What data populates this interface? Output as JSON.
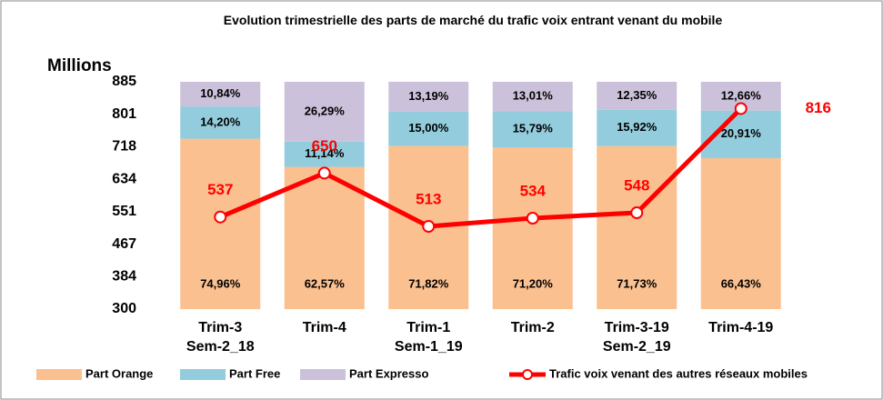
{
  "chart_data": {
    "type": "stacked_bar_line",
    "title": "Evolution trimestrielle  des parts de marché du trafic voix  entrant venant du mobile",
    "y_label": "Millions",
    "categories": [
      "Trim-3\nSem-2_18",
      "Trim-4",
      "Trim-1\nSem-1_19",
      "Trim-2",
      "Trim-3-19\nSem-2_19",
      "Trim-4-19"
    ],
    "ylim": [
      300,
      885
    ],
    "yticks": [
      300,
      384,
      467,
      551,
      634,
      718,
      801,
      885
    ],
    "y2lim": [
      0,
      100
    ],
    "grid": false,
    "legend": "bottom",
    "series": [
      {
        "name": "Part Orange",
        "color": "#fac090",
        "axis": "y2",
        "values": [
          74.96,
          62.57,
          71.82,
          71.2,
          71.73,
          66.43
        ],
        "value_labels": [
          "74,96%",
          "62,57%",
          "71,82%",
          "71,20%",
          "71,73%",
          "66,43%"
        ]
      },
      {
        "name": "Part Free",
        "color": "#93cddd",
        "axis": "y2",
        "values": [
          14.2,
          11.14,
          15.0,
          15.79,
          15.92,
          20.91
        ],
        "value_labels": [
          "14,20%",
          "11,14%",
          "15,00%",
          "15,79%",
          "15,92%",
          "20,91%"
        ]
      },
      {
        "name": "Part Expresso",
        "color": "#ccc1da",
        "axis": "y2",
        "values": [
          10.84,
          26.29,
          13.19,
          13.01,
          12.35,
          12.66
        ],
        "value_labels": [
          "10,84%",
          "26,29%",
          "13,19%",
          "13,01%",
          "12,35%",
          "12,66%"
        ]
      },
      {
        "name": "Trafic voix venant des autres réseaux mobiles",
        "color": "#ff0000",
        "type": "line",
        "values": [
          537,
          650,
          513,
          534,
          548,
          816
        ]
      }
    ]
  }
}
